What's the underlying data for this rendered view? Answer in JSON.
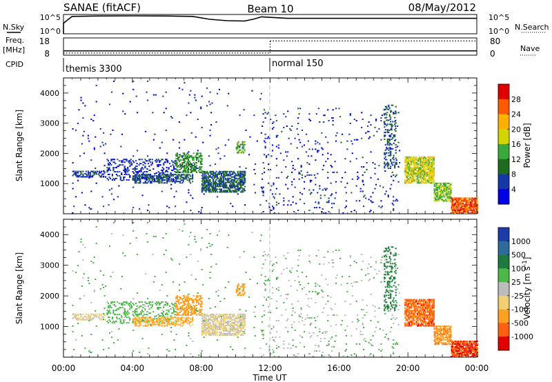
{
  "header": {
    "station": "SANAE (fitACF)",
    "beam": "Beam 10",
    "date": "08/May/2012"
  },
  "labels": {
    "nsky": "N.Sky",
    "nsearch": "N.Search",
    "freq": "Freq.",
    "mhz": "[MHz]",
    "nave": "Nave",
    "cpid": "CPID"
  },
  "noise_axes": {
    "left_ticks": [
      "10^5",
      "10^0"
    ],
    "right_ticks": [
      "10^5",
      "10^0"
    ]
  },
  "freq_axes": {
    "left_ticks": [
      "18",
      "8"
    ],
    "right_ticks": [
      "80",
      "0"
    ]
  },
  "cpid_segments": [
    {
      "start_hour": 0,
      "label": "themis 3300"
    },
    {
      "start_hour": 12,
      "label": "normal 150"
    }
  ],
  "colorbars": {
    "power": {
      "title": "Power [dB]",
      "tick_labels": [
        "28",
        "24",
        "20",
        "16",
        "12",
        "8",
        "4"
      ],
      "colors": [
        "#e00000",
        "#ff5a00",
        "#ffb000",
        "#d4d400",
        "#3aa83a",
        "#1e6b1e",
        "#1438a8",
        "#0000e6"
      ]
    },
    "velocity": {
      "title": "Velocity [m s^-1]",
      "tick_labels": [
        "1000",
        "500",
        "100",
        "25",
        "-25",
        "-100",
        "-500",
        "-1000"
      ],
      "colors": [
        "#1e3ca8",
        "#2e6b9a",
        "#1e7a3c",
        "#4cb848",
        "#bcbcbc",
        "#f0d070",
        "#ffa020",
        "#ff6010",
        "#e00000"
      ]
    }
  },
  "chart_data": {
    "type": "heatmap",
    "x_range_hours": [
      0,
      24
    ],
    "x_tick_labels": [
      "00:00",
      "04:00",
      "08:00",
      "12:00",
      "16:00",
      "20:00",
      "00:00"
    ],
    "xlabel": "Time UT",
    "ylabel": "Slant Range [km]",
    "ylim": [
      0,
      4500
    ],
    "y_tick_labels": [
      "1000",
      "2000",
      "3000",
      "4000"
    ],
    "noise": {
      "sky_level_fraction": [
        [
          0,
          0.55
        ],
        [
          0.5,
          0.9
        ],
        [
          2,
          0.92
        ],
        [
          4,
          0.93
        ],
        [
          6,
          0.92
        ],
        [
          7.5,
          0.9
        ],
        [
          8.5,
          0.75
        ],
        [
          9.5,
          0.68
        ],
        [
          10.5,
          0.66
        ],
        [
          11,
          0.75
        ],
        [
          11.5,
          0.88
        ],
        [
          13,
          0.8
        ],
        [
          16,
          0.8
        ],
        [
          20,
          0.8
        ],
        [
          24,
          0.8
        ]
      ]
    },
    "frequency": {
      "segments": [
        {
          "start": 0,
          "end": 12,
          "value_mhz": 10.5
        },
        {
          "start": 12,
          "end": 24,
          "value_mhz": 10.5
        }
      ]
    },
    "nave": {
      "segments": [
        {
          "start": 0,
          "end": 12,
          "value": 10
        },
        {
          "start": 12,
          "end": 24,
          "value": 66
        }
      ]
    },
    "echo_regions": [
      {
        "t0": 0.5,
        "t1": 2.5,
        "r0": 1200,
        "r1": 1400,
        "density": 0.5,
        "power": 6,
        "velocity": -40
      },
      {
        "t0": 2.5,
        "t1": 6.5,
        "r0": 1100,
        "r1": 1800,
        "density": 0.25,
        "power": 5,
        "velocity": 60
      },
      {
        "t0": 4.0,
        "t1": 7.5,
        "r0": 1000,
        "r1": 1300,
        "density": 0.55,
        "power": 7,
        "velocity": -120
      },
      {
        "t0": 6.5,
        "t1": 8.0,
        "r0": 1350,
        "r1": 2000,
        "density": 0.5,
        "power": 12,
        "velocity": -300
      },
      {
        "t0": 8.0,
        "t1": 10.5,
        "r0": 700,
        "r1": 1400,
        "density": 0.65,
        "power": 8,
        "velocity": -30
      },
      {
        "t0": 10.0,
        "t1": 10.5,
        "r0": 2000,
        "r1": 2400,
        "density": 0.6,
        "power": 14,
        "velocity": -200
      },
      {
        "t0": 19.8,
        "t1": 21.5,
        "r0": 1000,
        "r1": 1900,
        "density": 0.75,
        "power": 18,
        "velocity": -700
      },
      {
        "t0": 21.5,
        "t1": 22.5,
        "r0": 400,
        "r1": 1000,
        "density": 0.7,
        "power": 16,
        "velocity": -400
      },
      {
        "t0": 22.5,
        "t1": 24.0,
        "r0": 0,
        "r1": 500,
        "density": 0.85,
        "power": 26,
        "velocity": -900
      },
      {
        "t0": 11.5,
        "t1": 19.5,
        "r0": 0,
        "r1": 3500,
        "density": 0.035,
        "power": 5,
        "velocity": 20
      },
      {
        "t0": 0.5,
        "t1": 11.5,
        "r0": 0,
        "r1": 4400,
        "density": 0.012,
        "power": 4,
        "velocity": 50
      },
      {
        "t0": 18.6,
        "t1": 19.3,
        "r0": 1500,
        "r1": 3600,
        "density": 0.25,
        "power": 8,
        "velocity": 200
      }
    ]
  }
}
